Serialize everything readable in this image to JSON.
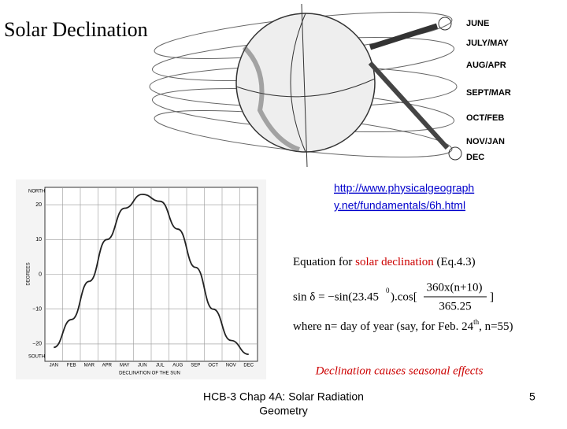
{
  "title": "Solar Declination",
  "diagram": {
    "labels": [
      "JUNE",
      "JULY/MAY",
      "AUG/APR",
      "SEPT/MAR",
      "OCT/FEB",
      "NOV/JAN",
      "DEC"
    ]
  },
  "link": {
    "line1": "http://www.physicalgeograph",
    "line2": "y.net/fundamentals/6h.html"
  },
  "equation_heading": {
    "before": "Equation for",
    "highlight": "solar declination",
    "after": "(Eq.4.3)"
  },
  "equation": {
    "left": "sin δ = −sin(23.45",
    "degree": "0",
    "middle": ").cos[",
    "numerator": "360x(n+10)",
    "denominator": "365.25",
    "close": "]"
  },
  "where": {
    "text": "where n= day of year (say, for Feb. 24",
    "suffix": "th",
    "end": ", n=55)"
  },
  "caption": "Declination causes seasonal effects",
  "footer": {
    "line1": "HCB-3 Chap 4A: Solar Radiation",
    "line2": "Geometry"
  },
  "page_number": 5,
  "chart_data": {
    "type": "line",
    "xlabel": "DECLINATION OF THE SUN",
    "ylabel": "DEGREES",
    "north_label": "NORTH",
    "south_label": "SOUTH",
    "categories": [
      "JAN",
      "FEB",
      "MAR",
      "APR",
      "MAY",
      "JUN",
      "JUL",
      "AUG",
      "SEP",
      "OCT",
      "NOV",
      "DEC"
    ],
    "values": [
      -21,
      -13,
      -2,
      10,
      19,
      23,
      21,
      13,
      2,
      -10,
      -19,
      -23
    ],
    "ylim": [
      -25,
      25
    ],
    "yticks": [
      {
        "value": -20,
        "label": "−20"
      },
      {
        "value": -10,
        "label": "−10"
      },
      0,
      10,
      20
    ],
    "grid": true,
    "color": "#222222"
  }
}
